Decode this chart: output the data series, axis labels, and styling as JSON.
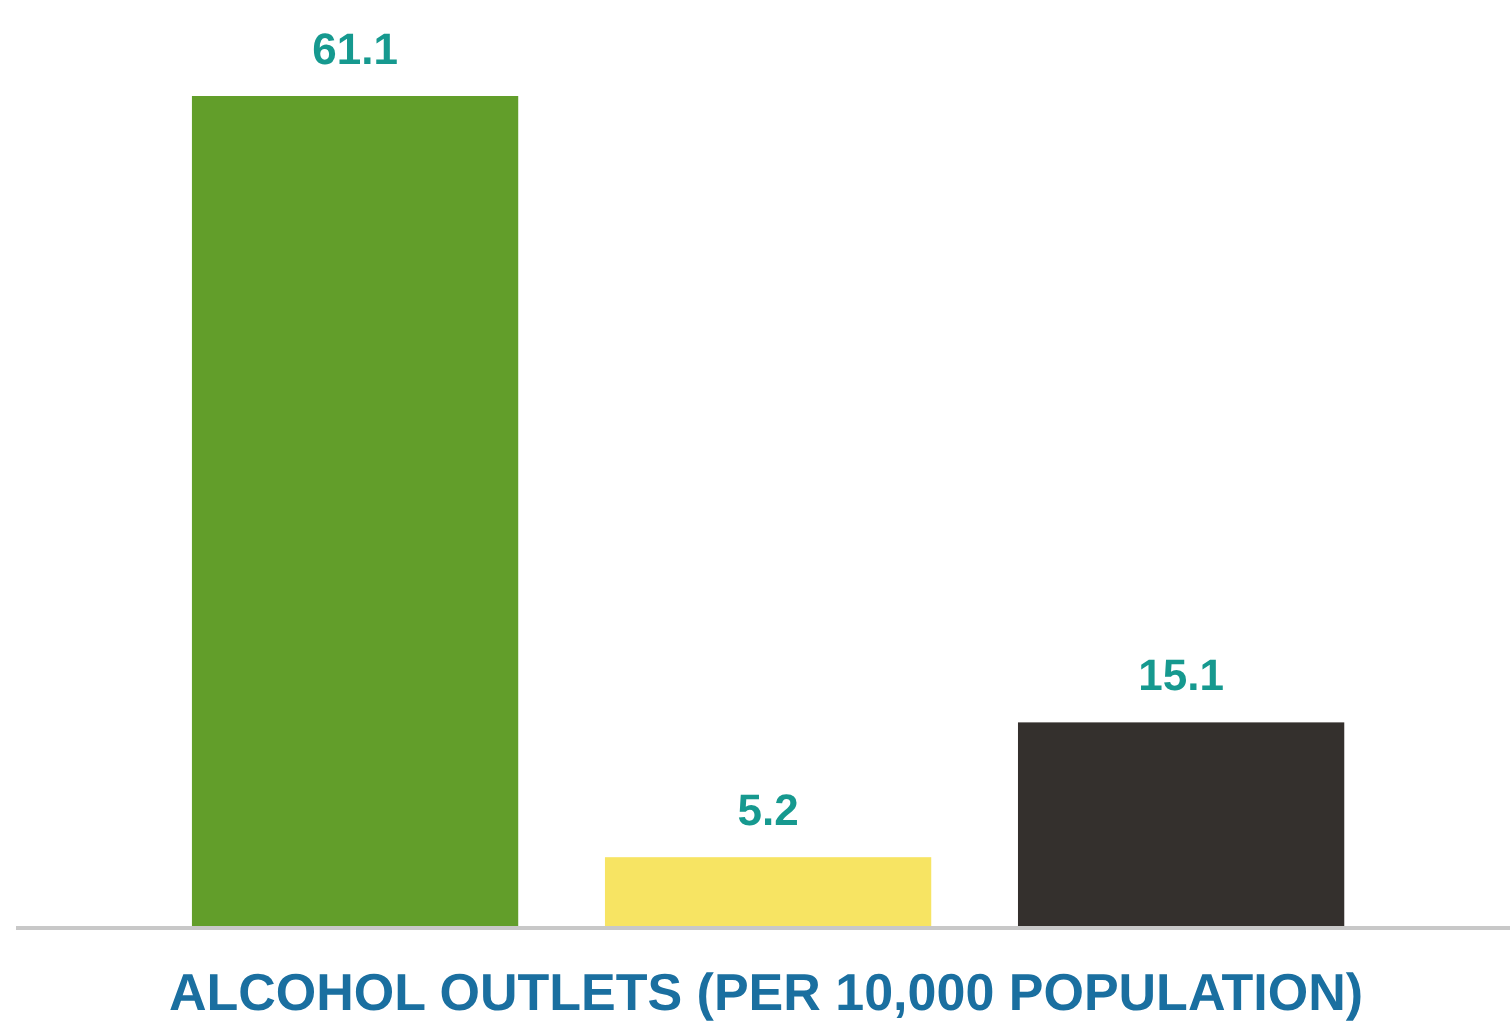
{
  "chart_data": {
    "type": "bar",
    "xlabel": "ALCOHOL OUTLETS (PER 10,000 POPULATION)",
    "categories": [
      null,
      null,
      null
    ],
    "values": [
      61.1,
      5.2,
      15.1
    ],
    "colors": [
      "#629e2a",
      "#f7e463",
      "#34302d"
    ],
    "data_labels": true
  }
}
